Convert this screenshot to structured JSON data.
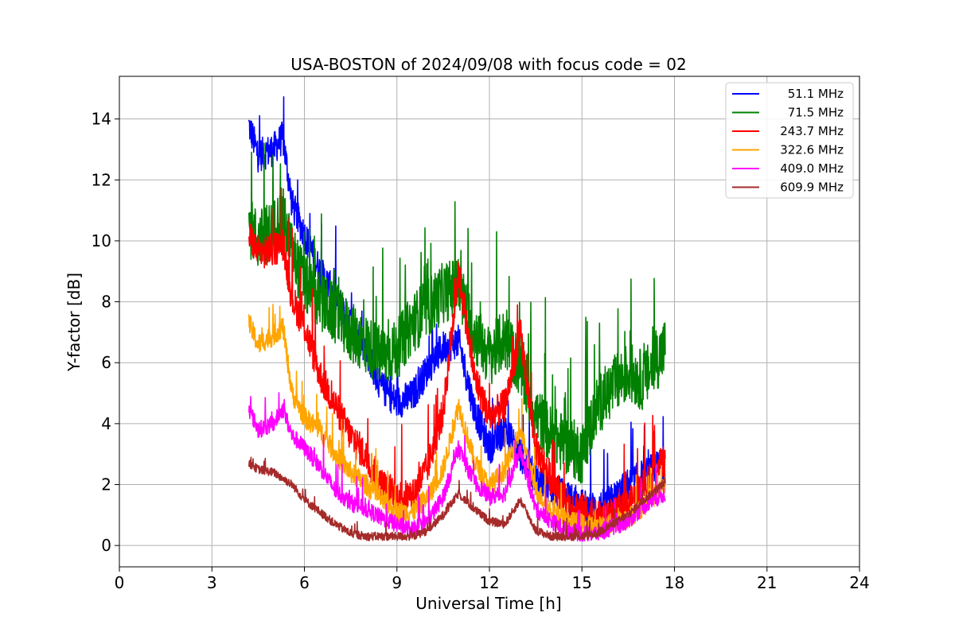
{
  "chart_data": {
    "type": "line",
    "title": "USA-BOSTON of 2024/09/08 with focus code = 02",
    "xlabel": "Universal Time [h]",
    "ylabel": "Y-factor [dB]",
    "xlim": [
      0,
      24
    ],
    "ylim": [
      -0.7,
      15.4
    ],
    "x_ticks": [
      "0",
      "3",
      "6",
      "9",
      "12",
      "15",
      "18",
      "21",
      "24"
    ],
    "y_ticks": [
      "0",
      "2",
      "4",
      "6",
      "8",
      "10",
      "12",
      "14"
    ],
    "grid": true,
    "legend_position": "top-right",
    "series": [
      {
        "name": "51.1 MHz",
        "color": "#0000ff",
        "noise": 0.55,
        "x": [
          4.2,
          4.5,
          5.0,
          5.3,
          5.6,
          6.0,
          6.5,
          7.0,
          7.5,
          8.0,
          8.5,
          9.0,
          9.5,
          10.0,
          10.5,
          11.0,
          11.5,
          12.0,
          12.5,
          13.0,
          13.5,
          14.0,
          14.5,
          15.0,
          15.5,
          16.0,
          16.5,
          17.0,
          17.5,
          17.7
        ],
        "y": [
          13.8,
          12.8,
          13.0,
          13.4,
          11.2,
          10.2,
          9.0,
          8.2,
          7.3,
          6.4,
          5.2,
          4.7,
          4.9,
          5.8,
          6.5,
          6.7,
          4.5,
          3.2,
          3.8,
          3.0,
          2.2,
          1.9,
          1.6,
          1.3,
          1.2,
          1.5,
          2.0,
          2.3,
          2.6,
          2.6
        ]
      },
      {
        "name": "71.5 MHz",
        "color": "#008000",
        "noise": 1.0,
        "x": [
          4.2,
          4.5,
          5.0,
          5.3,
          5.6,
          6.0,
          6.5,
          7.0,
          7.5,
          8.0,
          8.5,
          9.0,
          9.5,
          10.0,
          10.5,
          11.0,
          11.5,
          12.0,
          12.5,
          13.0,
          13.5,
          14.0,
          14.5,
          15.0,
          15.5,
          16.0,
          16.5,
          17.0,
          17.5,
          17.7
        ],
        "y": [
          10.5,
          10.0,
          10.4,
          10.8,
          9.6,
          8.6,
          8.0,
          7.6,
          7.0,
          6.6,
          6.2,
          6.4,
          7.3,
          7.8,
          8.3,
          8.5,
          7.0,
          6.2,
          6.8,
          5.8,
          4.3,
          3.6,
          3.3,
          3.0,
          4.6,
          5.2,
          5.7,
          5.4,
          6.2,
          6.5
        ]
      },
      {
        "name": "243.7 MHz",
        "color": "#ff0000",
        "noise": 0.55,
        "x": [
          4.2,
          4.5,
          5.0,
          5.3,
          5.6,
          6.0,
          6.5,
          7.0,
          7.5,
          8.0,
          8.5,
          9.0,
          9.5,
          10.0,
          10.5,
          11.0,
          11.5,
          12.0,
          12.5,
          13.0,
          13.5,
          14.0,
          14.5,
          15.0,
          15.5,
          16.0,
          16.5,
          17.0,
          17.5,
          17.7
        ],
        "y": [
          10.2,
          9.6,
          9.7,
          9.9,
          8.1,
          7.2,
          5.6,
          4.6,
          3.6,
          2.9,
          2.0,
          1.6,
          1.6,
          2.6,
          4.4,
          9.0,
          5.6,
          4.2,
          4.6,
          7.0,
          3.2,
          2.2,
          1.4,
          1.2,
          0.9,
          1.0,
          1.3,
          2.0,
          2.6,
          2.8
        ]
      },
      {
        "name": "322.6 MHz",
        "color": "#ffa500",
        "noise": 0.35,
        "x": [
          4.2,
          4.5,
          5.0,
          5.3,
          5.6,
          6.0,
          6.5,
          7.0,
          7.5,
          8.0,
          8.5,
          9.0,
          9.5,
          10.0,
          10.5,
          11.0,
          11.5,
          12.0,
          12.5,
          13.0,
          13.5,
          14.0,
          14.5,
          15.0,
          15.5,
          16.0,
          16.5,
          17.0,
          17.5,
          17.7
        ],
        "y": [
          7.3,
          6.6,
          6.9,
          7.2,
          5.0,
          4.2,
          3.8,
          3.0,
          2.4,
          2.0,
          1.5,
          1.1,
          1.1,
          1.6,
          2.5,
          4.6,
          2.8,
          1.9,
          2.5,
          3.8,
          1.8,
          1.2,
          0.8,
          0.7,
          0.6,
          0.7,
          0.9,
          1.3,
          1.8,
          2.0
        ]
      },
      {
        "name": "409.0 MHz",
        "color": "#ff00ff",
        "noise": 0.28,
        "x": [
          4.2,
          4.5,
          5.0,
          5.3,
          5.6,
          6.0,
          6.5,
          7.0,
          7.5,
          8.0,
          8.5,
          9.0,
          9.5,
          10.0,
          10.5,
          11.0,
          11.5,
          12.0,
          12.5,
          13.0,
          13.5,
          14.0,
          14.5,
          15.0,
          15.5,
          16.0,
          16.5,
          17.0,
          17.5,
          17.7
        ],
        "y": [
          4.5,
          3.8,
          4.0,
          4.5,
          3.6,
          3.2,
          2.6,
          1.8,
          1.4,
          1.2,
          0.9,
          0.7,
          0.5,
          0.8,
          1.6,
          3.2,
          2.1,
          1.6,
          1.7,
          3.1,
          1.2,
          0.8,
          0.5,
          0.4,
          0.4,
          0.6,
          0.8,
          1.3,
          1.6,
          1.7
        ]
      },
      {
        "name": "609.9 MHz",
        "color": "#a52a2a",
        "noise": 0.14,
        "x": [
          4.2,
          4.5,
          5.0,
          5.3,
          5.6,
          6.0,
          6.5,
          7.0,
          7.5,
          8.0,
          8.5,
          9.0,
          9.5,
          10.0,
          10.5,
          11.0,
          11.5,
          12.0,
          12.5,
          13.0,
          13.5,
          14.0,
          14.5,
          15.0,
          15.5,
          16.0,
          16.5,
          17.0,
          17.5,
          17.7
        ],
        "y": [
          2.7,
          2.5,
          2.4,
          2.2,
          2.0,
          1.5,
          1.1,
          0.7,
          0.4,
          0.3,
          0.3,
          0.3,
          0.3,
          0.5,
          1.0,
          1.7,
          1.2,
          0.8,
          0.7,
          1.5,
          0.5,
          0.3,
          0.3,
          0.3,
          0.4,
          0.7,
          1.0,
          1.5,
          1.9,
          2.1
        ]
      }
    ]
  }
}
